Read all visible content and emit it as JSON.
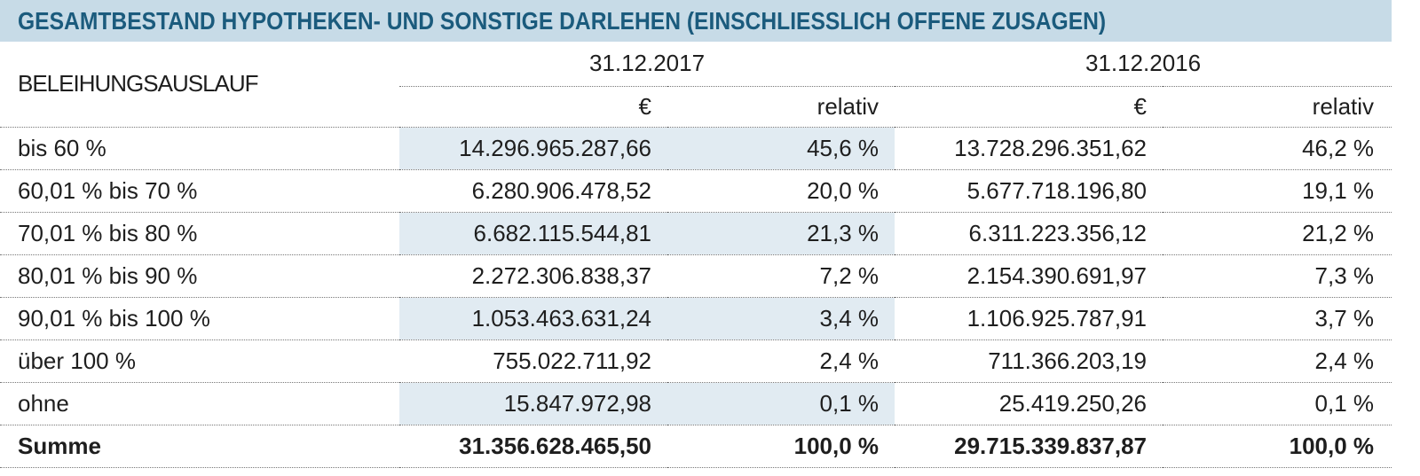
{
  "title": "GESAMTBESTAND HYPOTHEKEN- UND SONSTIGE DARLEHEN (EINSCHLIESSLICH OFFENE ZUSAGEN)",
  "table": {
    "row_header_label": "BELEIHUNGSAUSLAUF",
    "periods": [
      {
        "date": "31.12.2017",
        "amount_label": "€",
        "relative_label": "relativ"
      },
      {
        "date": "31.12.2016",
        "amount_label": "€",
        "relative_label": "relativ"
      }
    ],
    "rows": [
      {
        "label": "bis 60 %",
        "amount_2017": "14.296.965.287,66",
        "relative_2017": "45,6 %",
        "amount_2016": "13.728.296.351,62",
        "relative_2016": "46,2 %"
      },
      {
        "label": "60,01 % bis 70 %",
        "amount_2017": "6.280.906.478,52",
        "relative_2017": "20,0 %",
        "amount_2016": "5.677.718.196,80",
        "relative_2016": "19,1 %"
      },
      {
        "label": "70,01 % bis 80 %",
        "amount_2017": "6.682.115.544,81",
        "relative_2017": "21,3 %",
        "amount_2016": "6.311.223.356,12",
        "relative_2016": "21,2 %"
      },
      {
        "label": "80,01 % bis 90 %",
        "amount_2017": "2.272.306.838,37",
        "relative_2017": "7,2 %",
        "amount_2016": "2.154.390.691,97",
        "relative_2016": "7,3 %"
      },
      {
        "label": "90,01 % bis 100 %",
        "amount_2017": "1.053.463.631,24",
        "relative_2017": "3,4 %",
        "amount_2016": "1.106.925.787,91",
        "relative_2016": "3,7 %"
      },
      {
        "label": "über 100 %",
        "amount_2017": "755.022.711,92",
        "relative_2017": "2,4 %",
        "amount_2016": "711.366.203,19",
        "relative_2016": "2,4 %"
      },
      {
        "label": "ohne",
        "amount_2017": "15.847.972,98",
        "relative_2017": "0,1 %",
        "amount_2016": "25.419.250,26",
        "relative_2016": "0,1 %"
      }
    ],
    "total": {
      "label": "Summe",
      "amount_2017": "31.356.628.465,50",
      "relative_2017": "100,0 %",
      "amount_2016": "29.715.339.837,87",
      "relative_2016": "100,0 %"
    }
  },
  "colors": {
    "title_background": "#c7dbe7",
    "title_text": "#1b5b7d",
    "highlight_cells": "#e1ebf2",
    "text": "#1e1e1e",
    "rule": "#777777"
  }
}
